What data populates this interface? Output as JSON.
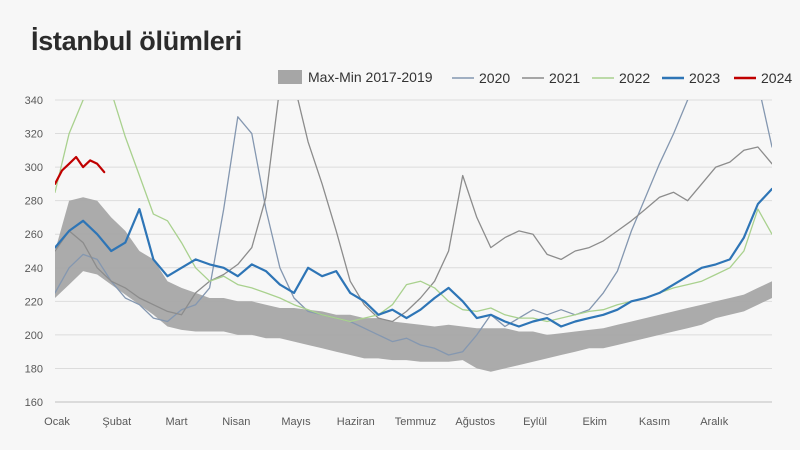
{
  "chart_data": {
    "type": "line",
    "title": "İstanbul ölümleri",
    "ylim": [
      160,
      340
    ],
    "y_ticks": [
      160,
      180,
      200,
      220,
      240,
      260,
      280,
      300,
      320,
      340
    ],
    "x_ticks": [
      "Ocak",
      "Şubat",
      "Mart",
      "Nisan",
      "Mayıs",
      "Haziran",
      "Temmuz",
      "Ağustos",
      "Eylül",
      "Ekim",
      "Kasım",
      "Aralık"
    ],
    "x_unit": "week of year",
    "grid": true,
    "legend_position": "top-right",
    "band": {
      "name": "Max-Min 2017-2019",
      "color": "#a6a6a6",
      "x": [
        1,
        2,
        3,
        4,
        5,
        6,
        7,
        8,
        9,
        10,
        11,
        12,
        13,
        14,
        15,
        16,
        17,
        18,
        19,
        20,
        21,
        22,
        23,
        24,
        25,
        26,
        27,
        28,
        29,
        30,
        31,
        32,
        33,
        34,
        35,
        36,
        37,
        38,
        39,
        40,
        41,
        42,
        43,
        44,
        45,
        46,
        47,
        48,
        49,
        50,
        51,
        52
      ],
      "max": [
        250,
        280,
        282,
        280,
        270,
        262,
        250,
        245,
        232,
        228,
        225,
        222,
        222,
        220,
        220,
        218,
        216,
        216,
        215,
        214,
        212,
        212,
        210,
        210,
        208,
        207,
        206,
        205,
        206,
        205,
        204,
        204,
        204,
        202,
        202,
        200,
        201,
        202,
        203,
        204,
        206,
        208,
        210,
        212,
        214,
        216,
        218,
        220,
        222,
        224,
        228,
        232
      ],
      "min": [
        222,
        230,
        238,
        236,
        230,
        224,
        218,
        212,
        205,
        203,
        202,
        202,
        202,
        200,
        200,
        198,
        198,
        196,
        194,
        192,
        190,
        188,
        186,
        186,
        185,
        185,
        184,
        184,
        184,
        185,
        180,
        178,
        180,
        182,
        184,
        186,
        188,
        190,
        192,
        192,
        194,
        196,
        198,
        200,
        202,
        204,
        206,
        210,
        212,
        214,
        218,
        222
      ]
    },
    "series": [
      {
        "name": "2020",
        "color": "#8497b0",
        "width": 1.3,
        "x": [
          1,
          2,
          3,
          4,
          5,
          6,
          7,
          8,
          9,
          10,
          11,
          12,
          13,
          14,
          15,
          16,
          17,
          18,
          19,
          20,
          21,
          22,
          23,
          24,
          25,
          26,
          27,
          28,
          29,
          30,
          31,
          32,
          33,
          34,
          35,
          36,
          37,
          38,
          39,
          40,
          41,
          42,
          43,
          44,
          45,
          46,
          47,
          48,
          49,
          50,
          51,
          52
        ],
        "values": [
          225,
          240,
          248,
          245,
          232,
          222,
          218,
          210,
          208,
          215,
          218,
          228,
          275,
          330,
          320,
          275,
          240,
          222,
          214,
          212,
          210,
          208,
          204,
          200,
          196,
          198,
          194,
          192,
          188,
          190,
          200,
          212,
          205,
          210,
          215,
          212,
          215,
          212,
          215,
          225,
          238,
          262,
          282,
          302,
          320,
          340,
          350,
          350,
          350,
          350,
          350,
          312
        ]
      },
      {
        "name": "2021",
        "color": "#8c8c8c",
        "width": 1.3,
        "x": [
          1,
          2,
          3,
          4,
          5,
          6,
          7,
          8,
          9,
          10,
          11,
          12,
          13,
          14,
          15,
          16,
          17,
          18,
          19,
          20,
          21,
          22,
          23,
          24,
          25,
          26,
          27,
          28,
          29,
          30,
          31,
          32,
          33,
          34,
          35,
          36,
          37,
          38,
          39,
          40,
          41,
          42,
          43,
          44,
          45,
          46,
          47,
          48,
          49,
          50,
          51,
          52
        ],
        "values": [
          250,
          262,
          255,
          240,
          232,
          228,
          222,
          218,
          214,
          212,
          225,
          232,
          236,
          242,
          252,
          282,
          348,
          350,
          315,
          290,
          262,
          232,
          218,
          210,
          208,
          214,
          222,
          232,
          250,
          295,
          270,
          252,
          258,
          262,
          260,
          248,
          245,
          250,
          252,
          256,
          262,
          268,
          275,
          282,
          285,
          280,
          290,
          300,
          303,
          310,
          312,
          302
        ]
      },
      {
        "name": "2022",
        "color": "#a9d18e",
        "width": 1.3,
        "x": [
          1,
          2,
          3,
          4,
          5,
          6,
          7,
          8,
          9,
          10,
          11,
          12,
          13,
          14,
          15,
          16,
          17,
          18,
          19,
          20,
          21,
          22,
          23,
          24,
          25,
          26,
          27,
          28,
          29,
          30,
          31,
          32,
          33,
          34,
          35,
          36,
          37,
          38,
          39,
          40,
          41,
          42,
          43,
          44,
          45,
          46,
          47,
          48,
          49,
          50,
          51,
          52
        ],
        "values": [
          285,
          320,
          340,
          350,
          345,
          318,
          295,
          272,
          268,
          255,
          240,
          232,
          235,
          230,
          228,
          225,
          222,
          218,
          215,
          212,
          210,
          208,
          210,
          212,
          218,
          230,
          232,
          228,
          220,
          215,
          214,
          216,
          212,
          210,
          210,
          208,
          210,
          212,
          214,
          215,
          218,
          220,
          222,
          225,
          228,
          230,
          232,
          236,
          240,
          250,
          275,
          260
        ]
      },
      {
        "name": "2023",
        "color": "#2e75b6",
        "width": 2.2,
        "x": [
          1,
          2,
          3,
          4,
          5,
          6,
          7,
          8,
          9,
          10,
          11,
          12,
          13,
          14,
          15,
          16,
          17,
          18,
          19,
          20,
          21,
          22,
          23,
          24,
          25,
          26,
          27,
          28,
          29,
          30,
          31,
          32,
          33,
          34,
          35,
          36,
          37,
          38,
          39,
          40,
          41,
          42,
          43,
          44,
          45,
          46,
          47,
          48,
          49,
          50,
          51,
          52
        ],
        "values": [
          252,
          262,
          268,
          260,
          250,
          255,
          275,
          245,
          235,
          240,
          245,
          242,
          240,
          235,
          242,
          238,
          230,
          225,
          240,
          235,
          238,
          225,
          220,
          212,
          215,
          210,
          215,
          222,
          228,
          220,
          210,
          212,
          208,
          205,
          208,
          210,
          205,
          208,
          210,
          212,
          215,
          220,
          222,
          225,
          230,
          235,
          240,
          242,
          245,
          258,
          278,
          287
        ]
      },
      {
        "name": "2024",
        "color": "#c00000",
        "width": 2.2,
        "x": [
          1,
          1.5,
          2,
          2.5,
          3,
          3.5,
          4,
          4.5
        ],
        "values": [
          290,
          298,
          302,
          306,
          300,
          304,
          302,
          297
        ]
      }
    ]
  }
}
